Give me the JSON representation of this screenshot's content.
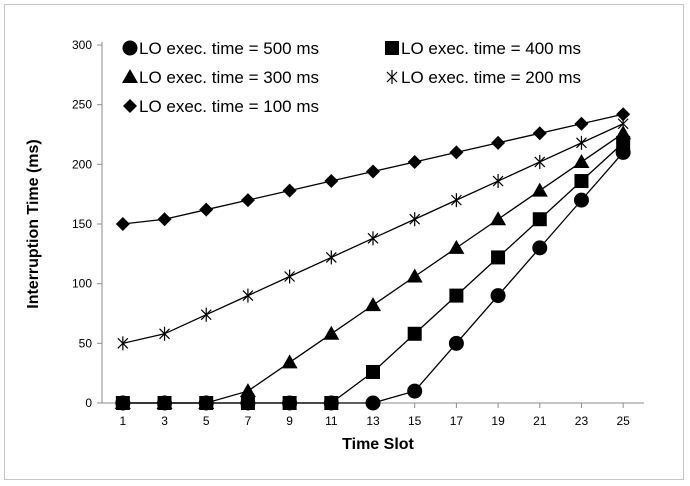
{
  "chart_data": {
    "type": "line",
    "title": "",
    "xlabel": "Time Slot",
    "ylabel": "Interruption Time (ms)",
    "x": [
      1,
      3,
      5,
      7,
      9,
      11,
      13,
      15,
      17,
      19,
      21,
      23,
      25
    ],
    "xlim": [
      0,
      26
    ],
    "ylim": [
      0,
      300
    ],
    "yticks": [
      0,
      50,
      100,
      150,
      200,
      250,
      300
    ],
    "grid": false,
    "legend_position": "top-left",
    "series": [
      {
        "name": "LO exec. time = 500 ms",
        "marker": "circle",
        "values": [
          0,
          0,
          0,
          0,
          0,
          0,
          0,
          10,
          50,
          90,
          130,
          170,
          210
        ]
      },
      {
        "name": "LO exec. time = 400 ms",
        "marker": "square",
        "values": [
          0,
          0,
          0,
          0,
          0,
          0,
          26,
          58,
          90,
          122,
          154,
          186,
          218
        ]
      },
      {
        "name": "LO exec. time = 300 ms",
        "marker": "triangle",
        "values": [
          0,
          0,
          0,
          10,
          34,
          58,
          82,
          106,
          130,
          154,
          178,
          202,
          226
        ]
      },
      {
        "name": "LO exec. time = 200 ms",
        "marker": "asterisk",
        "values": [
          50,
          58,
          74,
          90,
          106,
          122,
          138,
          154,
          170,
          186,
          202,
          218,
          234
        ]
      },
      {
        "name": "LO exec. time = 100 ms",
        "marker": "diamond",
        "values": [
          150,
          154,
          162,
          170,
          178,
          186,
          194,
          202,
          210,
          218,
          226,
          234,
          242
        ]
      }
    ]
  }
}
